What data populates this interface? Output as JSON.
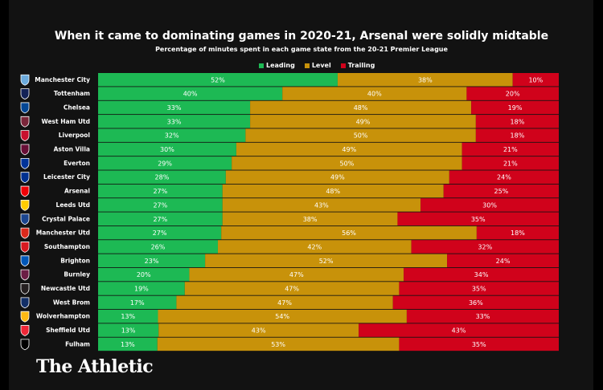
{
  "chart_data": {
    "type": "bar",
    "stacked": true,
    "orientation": "horizontal",
    "title": "When it came to dominating games in 2020-21, Arsenal were solidly midtable",
    "subtitle": "Percentage of minutes spent in each game state from the 20-21 Premier League",
    "categories": [
      "Manchester City",
      "Tottenham",
      "Chelsea",
      "West Ham Utd",
      "Liverpool",
      "Aston Villa",
      "Everton",
      "Leicester City",
      "Arsenal",
      "Leeds Utd",
      "Crystal Palace",
      "Manchester Utd",
      "Southampton",
      "Brighton",
      "Burnley",
      "Newcastle Utd",
      "West Brom",
      "Wolverhampton",
      "Sheffield Utd",
      "Fulham"
    ],
    "series": [
      {
        "name": "Leading",
        "color": "#1db954",
        "values": [
          52,
          40,
          33,
          33,
          32,
          30,
          29,
          28,
          27,
          27,
          27,
          27,
          26,
          23,
          20,
          19,
          17,
          13,
          13,
          13
        ]
      },
      {
        "name": "Level",
        "color": "#c8920a",
        "values": [
          38,
          40,
          48,
          49,
          50,
          49,
          50,
          49,
          48,
          43,
          38,
          56,
          42,
          52,
          47,
          47,
          47,
          54,
          43,
          53
        ]
      },
      {
        "name": "Trailing",
        "color": "#d0021b",
        "values": [
          10,
          20,
          19,
          18,
          18,
          21,
          21,
          24,
          25,
          30,
          35,
          18,
          32,
          24,
          34,
          35,
          36,
          33,
          43,
          35
        ]
      }
    ],
    "label_suffix": "%",
    "legend_position": "top",
    "grid": false
  },
  "brand": "The Athletic"
}
